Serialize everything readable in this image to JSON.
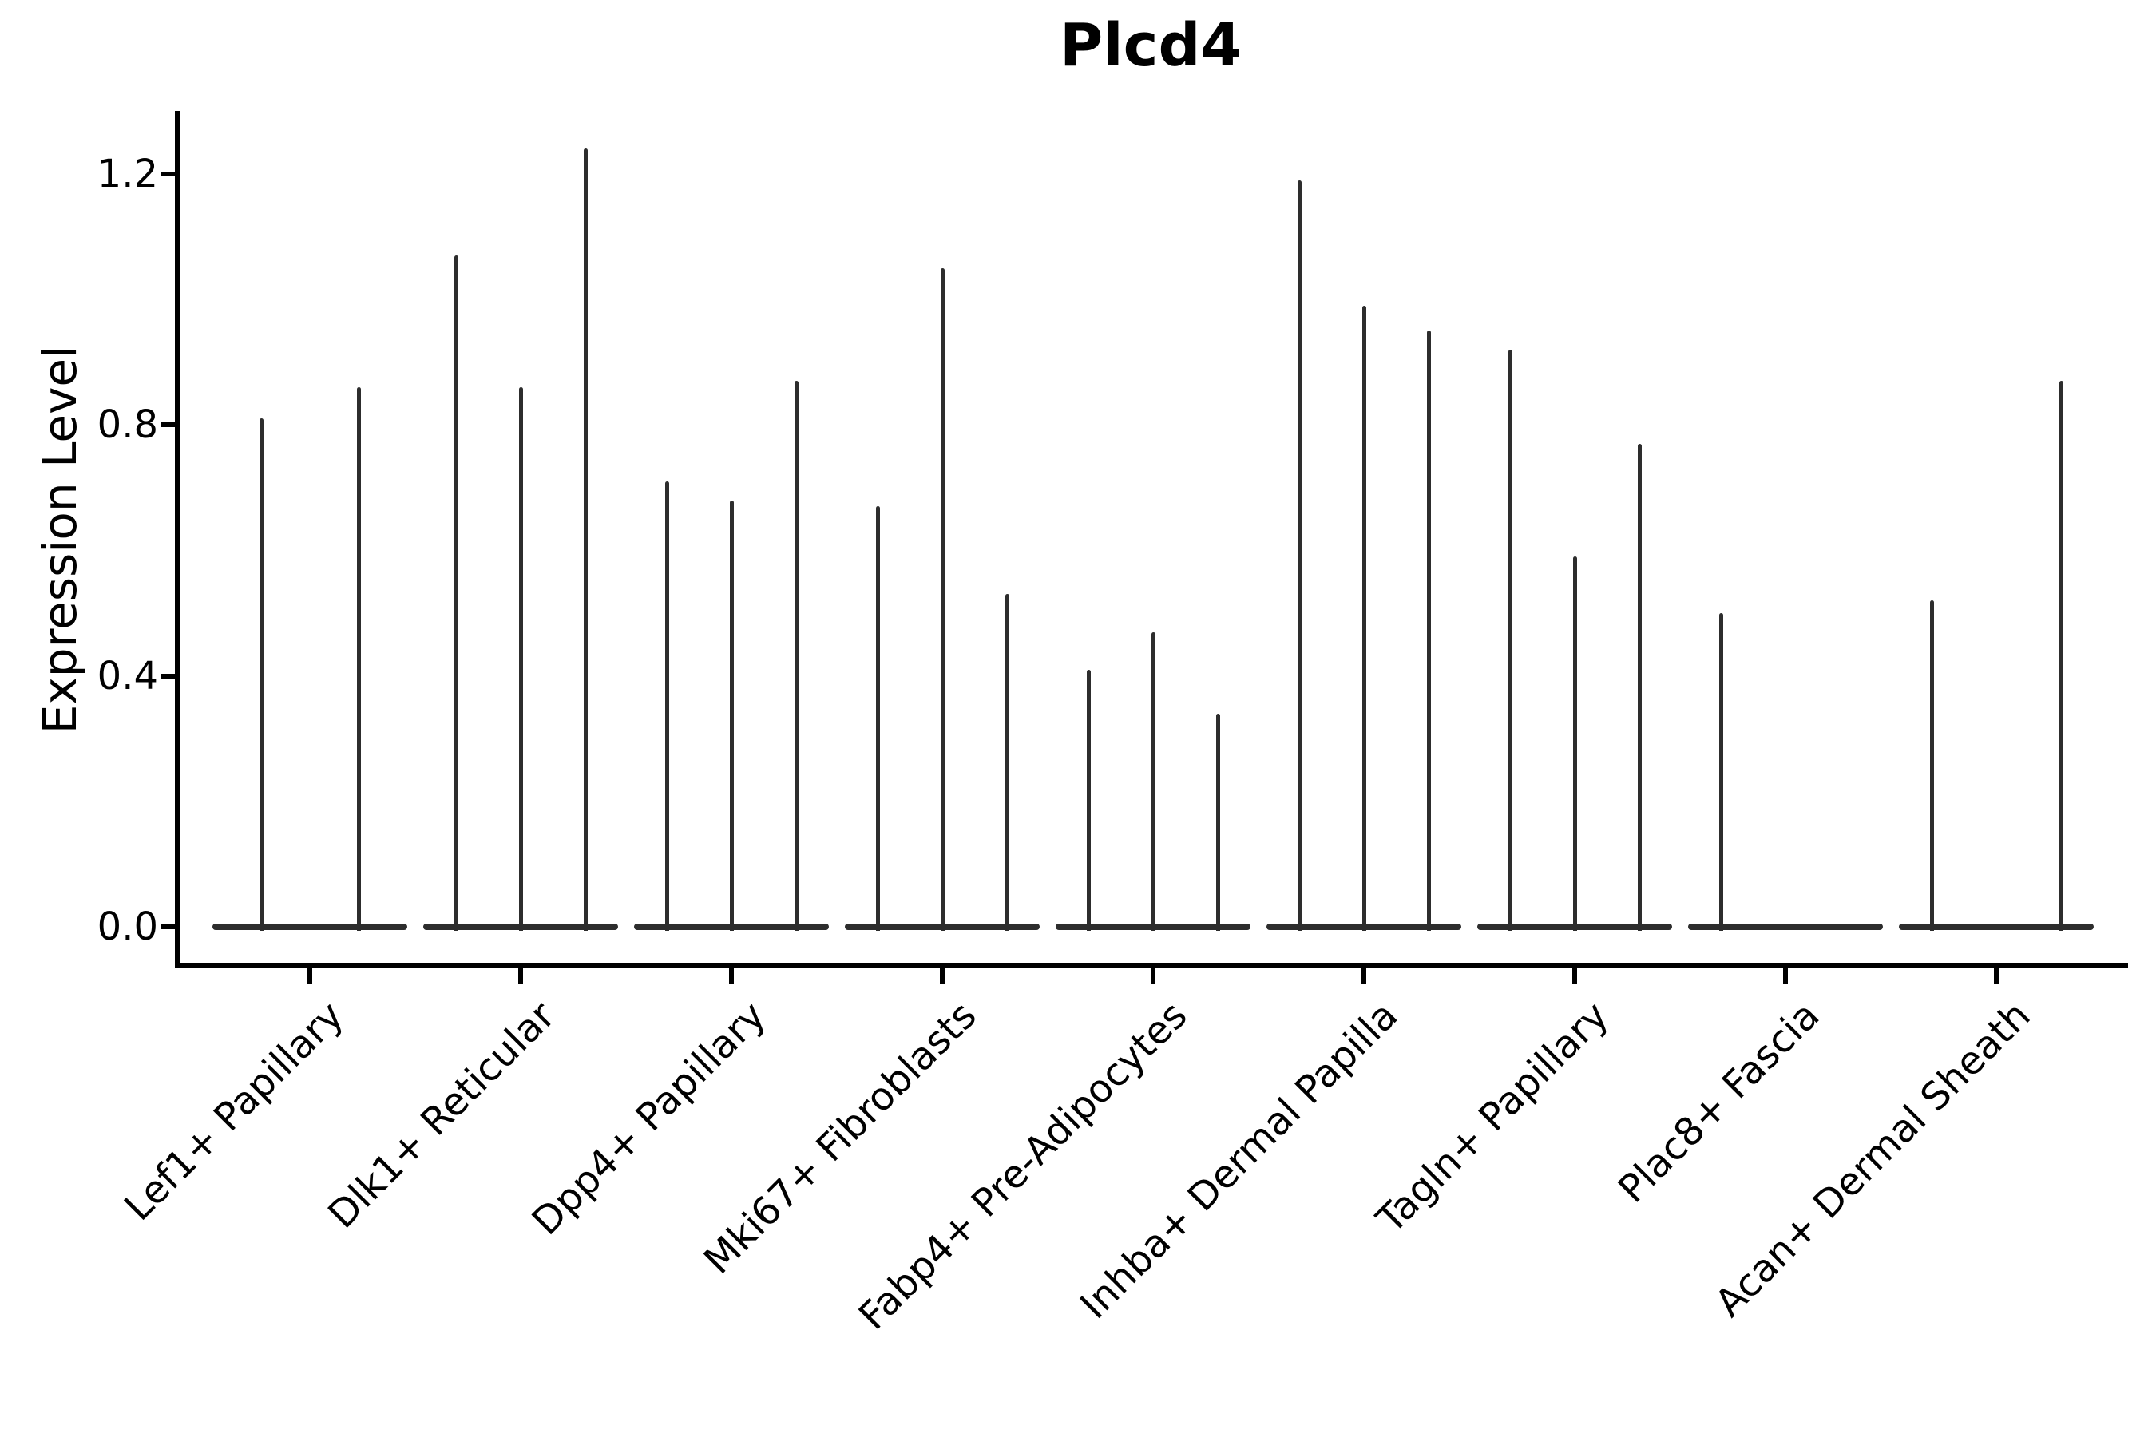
{
  "chart_data": {
    "type": "violin",
    "title": "Plcd4",
    "ylabel": "Expression Level",
    "xlabel": "",
    "ylim": [
      -0.06,
      1.3
    ],
    "grid": false,
    "legend": null,
    "yticks": [
      {
        "value": 0.0,
        "label": "0.0"
      },
      {
        "value": 0.4,
        "label": "0.4"
      },
      {
        "value": 0.8,
        "label": "0.8"
      },
      {
        "value": 1.2,
        "label": "1.2"
      }
    ],
    "categories": [
      {
        "label": "Lef1+ Papillary",
        "violins": [
          {
            "dx": -61,
            "peak": 0.81
          },
          {
            "dx": 61,
            "peak": 0.86
          }
        ]
      },
      {
        "label": "Dlk1+ Reticular",
        "violins": [
          {
            "dx": -81,
            "peak": 1.07
          },
          {
            "dx": 0,
            "peak": 0.86
          },
          {
            "dx": 81,
            "peak": 1.24
          }
        ]
      },
      {
        "label": "Dpp4+ Papillary",
        "violins": [
          {
            "dx": -81,
            "peak": 0.71
          },
          {
            "dx": 0,
            "peak": 0.68
          },
          {
            "dx": 81,
            "peak": 0.87
          }
        ]
      },
      {
        "label": "Mki67+ Fibroblasts",
        "violins": [
          {
            "dx": -81,
            "peak": 0.67
          },
          {
            "dx": 0,
            "peak": 1.05
          },
          {
            "dx": 81,
            "peak": 0.53
          }
        ]
      },
      {
        "label": "Fabp4+ Pre-Adipocytes",
        "violins": [
          {
            "dx": -81,
            "peak": 0.41
          },
          {
            "dx": 0,
            "peak": 0.47
          },
          {
            "dx": 81,
            "peak": 0.34
          }
        ]
      },
      {
        "label": "Inhba+ Dermal Papilla",
        "violins": [
          {
            "dx": -81,
            "peak": 1.19
          },
          {
            "dx": 0,
            "peak": 0.99
          },
          {
            "dx": 81,
            "peak": 0.95
          }
        ]
      },
      {
        "label": "Tagln+ Papillary",
        "violins": [
          {
            "dx": -81,
            "peak": 0.92
          },
          {
            "dx": 0,
            "peak": 0.59
          },
          {
            "dx": 81,
            "peak": 0.77
          }
        ]
      },
      {
        "label": "Plac8+ Fascia",
        "violins": [
          {
            "dx": -81,
            "peak": 0.5
          },
          {
            "dx": 0,
            "peak": 0.0
          },
          {
            "dx": 81,
            "peak": 0.0
          }
        ]
      },
      {
        "label": "Acan+ Dermal Sheath",
        "violins": [
          {
            "dx": -81,
            "peak": 0.52
          },
          {
            "dx": 0,
            "peak": 0.0
          },
          {
            "dx": 81,
            "peak": 0.87
          }
        ]
      }
    ],
    "colors": {
      "violin": "#2d2d2d",
      "axis": "#000000",
      "text": "#000000",
      "background": "#ffffff"
    }
  }
}
